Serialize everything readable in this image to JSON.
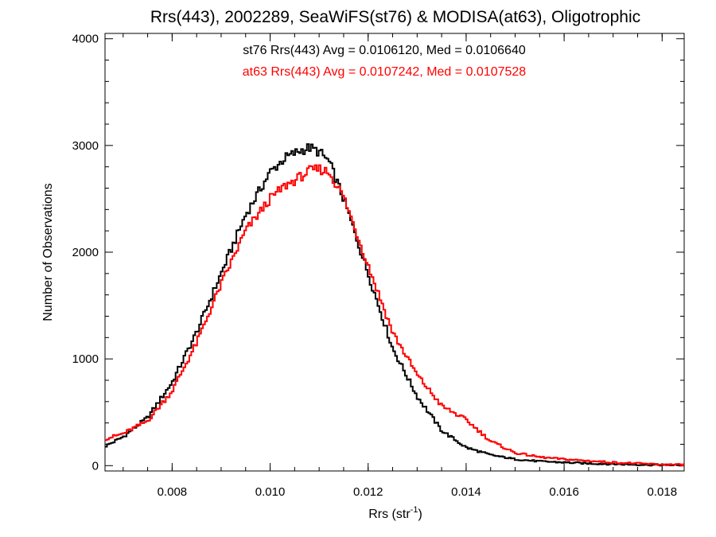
{
  "chart_data": {
    "type": "line",
    "title": "Rrs(443), 2002289, SeaWiFS(st76) & MODISA(at63), Oligotrophic",
    "xlabel_main": "Rrs (str",
    "xlabel_sup": "-1",
    "xlabel_close": ")",
    "ylabel": "Number of Observations",
    "xlim": [
      0.00663,
      0.01845
    ],
    "ylim": [
      -50,
      4050
    ],
    "xticks": [
      {
        "value": 0.008,
        "label": "0.008"
      },
      {
        "value": 0.01,
        "label": "0.010"
      },
      {
        "value": 0.012,
        "label": "0.012"
      },
      {
        "value": 0.014,
        "label": "0.014"
      },
      {
        "value": 0.016,
        "label": "0.016"
      },
      {
        "value": 0.018,
        "label": "0.018"
      }
    ],
    "yticks": [
      {
        "value": 0,
        "label": "0"
      },
      {
        "value": 1000,
        "label": "1000"
      },
      {
        "value": 2000,
        "label": "2000"
      },
      {
        "value": 3000,
        "label": "3000"
      },
      {
        "value": 4000,
        "label": "4000"
      }
    ],
    "annotations": [
      {
        "text": "st76 Rrs(443) Avg = 0.0106120, Med = 0.0106640",
        "color": "#000000"
      },
      {
        "text": "at63 Rrs(443) Avg = 0.0107242, Med = 0.0107528",
        "color": "#ff0000"
      }
    ],
    "series": [
      {
        "color": "#000000",
        "x": [
          0.00663,
          0.007,
          0.0075,
          0.008,
          0.0085,
          0.009,
          0.0095,
          0.01,
          0.0103,
          0.0106,
          0.0108,
          0.011,
          0.0112,
          0.0115,
          0.012,
          0.0125,
          0.013,
          0.0135,
          0.014,
          0.0145,
          0.015,
          0.0155,
          0.016,
          0.0165,
          0.017,
          0.0175,
          0.018,
          0.01845
        ],
        "y": [
          180,
          270,
          450,
          780,
          1250,
          1800,
          2350,
          2750,
          2880,
          2950,
          2980,
          2940,
          2850,
          2500,
          1800,
          1100,
          650,
          330,
          170,
          100,
          60,
          40,
          30,
          20,
          15,
          10,
          5,
          5
        ]
      },
      {
        "color": "#ff0000",
        "x": [
          0.00663,
          0.007,
          0.0075,
          0.008,
          0.0085,
          0.009,
          0.0095,
          0.01,
          0.0103,
          0.0106,
          0.0108,
          0.011,
          0.0112,
          0.0115,
          0.012,
          0.0125,
          0.013,
          0.0135,
          0.014,
          0.0145,
          0.015,
          0.0155,
          0.016,
          0.0165,
          0.017,
          0.0175,
          0.018,
          0.01845
        ],
        "y": [
          250,
          300,
          420,
          700,
          1150,
          1700,
          2200,
          2500,
          2620,
          2700,
          2760,
          2780,
          2750,
          2520,
          1880,
          1250,
          850,
          560,
          430,
          230,
          120,
          80,
          60,
          45,
          30,
          20,
          10,
          8
        ]
      }
    ]
  }
}
